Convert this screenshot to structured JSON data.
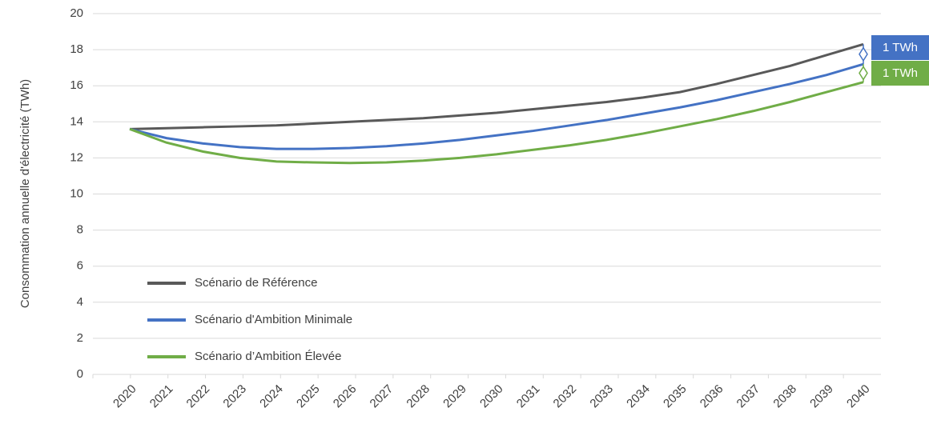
{
  "chart_data": {
    "type": "line",
    "y_label": "Consommation annuelle d'électricité (TWh)",
    "categories": [
      "2020",
      "2021",
      "2022",
      "2023",
      "2024",
      "2025",
      "2026",
      "2027",
      "2028",
      "2029",
      "2030",
      "2031",
      "2032",
      "2033",
      "2034",
      "2035",
      "2036",
      "2037",
      "2038",
      "2039",
      "2040"
    ],
    "series": [
      {
        "name": "Scénario de Référence",
        "color": "#595959",
        "values": [
          13.6,
          13.65,
          13.7,
          13.75,
          13.8,
          13.9,
          14.0,
          14.1,
          14.2,
          14.35,
          14.5,
          14.7,
          14.9,
          15.1,
          15.35,
          15.65,
          16.1,
          16.6,
          17.1,
          17.7,
          18.3
        ]
      },
      {
        "name": "Scénario d'Ambition Minimale",
        "color": "#4472c4",
        "values": [
          13.6,
          13.1,
          12.8,
          12.6,
          12.5,
          12.5,
          12.55,
          12.65,
          12.8,
          13.0,
          13.25,
          13.5,
          13.8,
          14.1,
          14.45,
          14.8,
          15.2,
          15.65,
          16.1,
          16.6,
          17.2
        ]
      },
      {
        "name": "Scénario d’Ambition Élevée",
        "color": "#70ad47",
        "values": [
          13.6,
          12.85,
          12.35,
          12.0,
          11.8,
          11.75,
          11.72,
          11.75,
          11.85,
          12.0,
          12.2,
          12.45,
          12.7,
          13.0,
          13.35,
          13.75,
          14.15,
          14.6,
          15.1,
          15.65,
          16.2
        ]
      }
    ],
    "annotations": [
      {
        "text": "1 TWh",
        "color": "#4472c4"
      },
      {
        "text": "1 TWh",
        "color": "#70ad47"
      }
    ],
    "ylim": [
      0,
      20
    ],
    "yticks": [
      0,
      2,
      4,
      6,
      8,
      10,
      12,
      14,
      16,
      18,
      20
    ],
    "grid": true,
    "legend": "lower left"
  }
}
